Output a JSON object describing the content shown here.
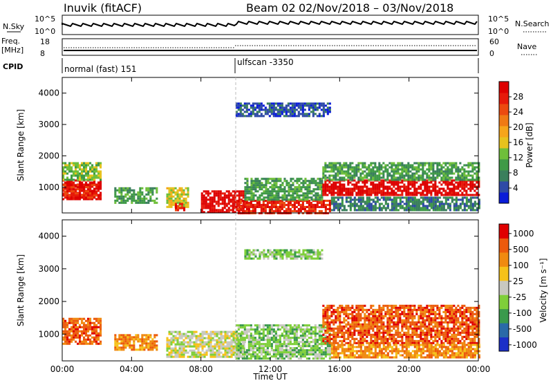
{
  "header": {
    "title": "Inuvik (fitACF)",
    "beam": "Beam 02",
    "date_range": "02/Nov/2018 – 03/Nov/2018"
  },
  "strips": {
    "nsky_label": "N.Sky",
    "nsky_ticks": [
      "10^5",
      "10^0"
    ],
    "nsearch_label": "N.Search",
    "nsearch_ticks": [
      "10^5",
      "10^0"
    ],
    "freq_label_1": "Freq.",
    "freq_label_2": "[MHz]",
    "freq_ticks": [
      "18",
      "8"
    ],
    "nave_label": "Nave",
    "nave_ticks": [
      "60",
      "0"
    ],
    "cpid_label": "CPID",
    "cpid_segments": [
      {
        "start_hour": 0,
        "label": "normal (fast) 151"
      },
      {
        "start_hour": 10,
        "label": "ulfscan -3350"
      }
    ]
  },
  "chart_data": [
    {
      "type": "heatmap",
      "name": "power",
      "xlabel": "",
      "ylabel": "Slant Range [km]",
      "xlim": [
        0,
        24
      ],
      "ylim": [
        180,
        4500
      ],
      "yticks": [
        "1000",
        "2000",
        "3000",
        "4000"
      ],
      "xticks": [
        "00:00",
        "04:00",
        "08:00",
        "12:00",
        "16:00",
        "20:00",
        "00:00"
      ],
      "colorbar": {
        "label": "Power [dB]",
        "ticks": [
          "4",
          "8",
          "12",
          "16",
          "20",
          "24",
          "28"
        ],
        "colors": [
          "#0a1cd8",
          "#2e4aa6",
          "#3a7f5c",
          "#3f9a47",
          "#6fbf3a",
          "#e6c21e",
          "#f6a51a",
          "#f07a14",
          "#ec4a0f",
          "#e61a0a",
          "#dd0000"
        ]
      },
      "regions": [
        {
          "t0": 0.0,
          "t1": 2.2,
          "r0": 600,
          "r1": 1250,
          "level": 10
        },
        {
          "t0": 0.0,
          "t1": 2.0,
          "r0": 700,
          "r1": 1100,
          "level": 9
        },
        {
          "t0": 0.0,
          "t1": 2.2,
          "r0": 1250,
          "r1": 1800,
          "level": 4
        },
        {
          "t0": 3.0,
          "t1": 5.5,
          "r0": 500,
          "r1": 1000,
          "level": 3
        },
        {
          "t0": 6.0,
          "t1": 7.3,
          "r0": 400,
          "r1": 1000,
          "level": 5
        },
        {
          "t0": 6.5,
          "t1": 7.0,
          "r0": 300,
          "r1": 500,
          "level": 9
        },
        {
          "t0": 8.0,
          "t1": 10.5,
          "r0": 200,
          "r1": 900,
          "level": 10
        },
        {
          "t0": 10.0,
          "t1": 15.5,
          "r0": 200,
          "r1": 600,
          "level": 9
        },
        {
          "t0": 10.5,
          "t1": 15.0,
          "r0": 600,
          "r1": 1300,
          "level": 3
        },
        {
          "t0": 10.0,
          "t1": 15.5,
          "r0": 3300,
          "r1": 3700,
          "level": 1
        },
        {
          "t0": 15.0,
          "t1": 24.0,
          "r0": 750,
          "r1": 1250,
          "level": 10
        },
        {
          "t0": 15.0,
          "t1": 24.0,
          "r0": 1250,
          "r1": 1800,
          "level": 3
        },
        {
          "t0": 15.5,
          "t1": 24.0,
          "r0": 300,
          "r1": 700,
          "level": 2
        }
      ]
    },
    {
      "type": "heatmap",
      "name": "velocity",
      "xlabel": "Time UT",
      "ylabel": "Slant Range [km]",
      "xlim": [
        0,
        24
      ],
      "ylim": [
        180,
        4500
      ],
      "yticks": [
        "1000",
        "2000",
        "3000",
        "4000"
      ],
      "xticks": [
        "00:00",
        "04:00",
        "08:00",
        "12:00",
        "16:00",
        "20:00",
        "00:00"
      ],
      "colorbar": {
        "label": "Velocity [m s⁻¹]",
        "ticks": [
          "1000",
          "500",
          "100",
          "25",
          "-25",
          "-100",
          "-500",
          "-1000"
        ],
        "colors": [
          "#1c2fc8",
          "#2a6aa8",
          "#3a9a4c",
          "#7fcf3a",
          "#c8c8c0",
          "#f6c21a",
          "#f08a10",
          "#ec5a0c",
          "#e00000"
        ]
      },
      "regions": [
        {
          "t0": 0.0,
          "t1": 2.2,
          "r0": 700,
          "r1": 1500,
          "level": 7
        },
        {
          "t0": 3.0,
          "t1": 5.5,
          "r0": 500,
          "r1": 1000,
          "level": 6
        },
        {
          "t0": 6.0,
          "t1": 10.5,
          "r0": 300,
          "r1": 1100,
          "level": 4
        },
        {
          "t0": 10.0,
          "t1": 15.5,
          "r0": 250,
          "r1": 1300,
          "level": 3
        },
        {
          "t0": 10.5,
          "t1": 15.0,
          "r0": 3300,
          "r1": 3600,
          "level": 3
        },
        {
          "t0": 15.0,
          "t1": 24.0,
          "r0": 700,
          "r1": 1900,
          "level": 7
        },
        {
          "t0": 15.5,
          "t1": 24.0,
          "r0": 300,
          "r1": 700,
          "level": 6
        }
      ]
    }
  ]
}
